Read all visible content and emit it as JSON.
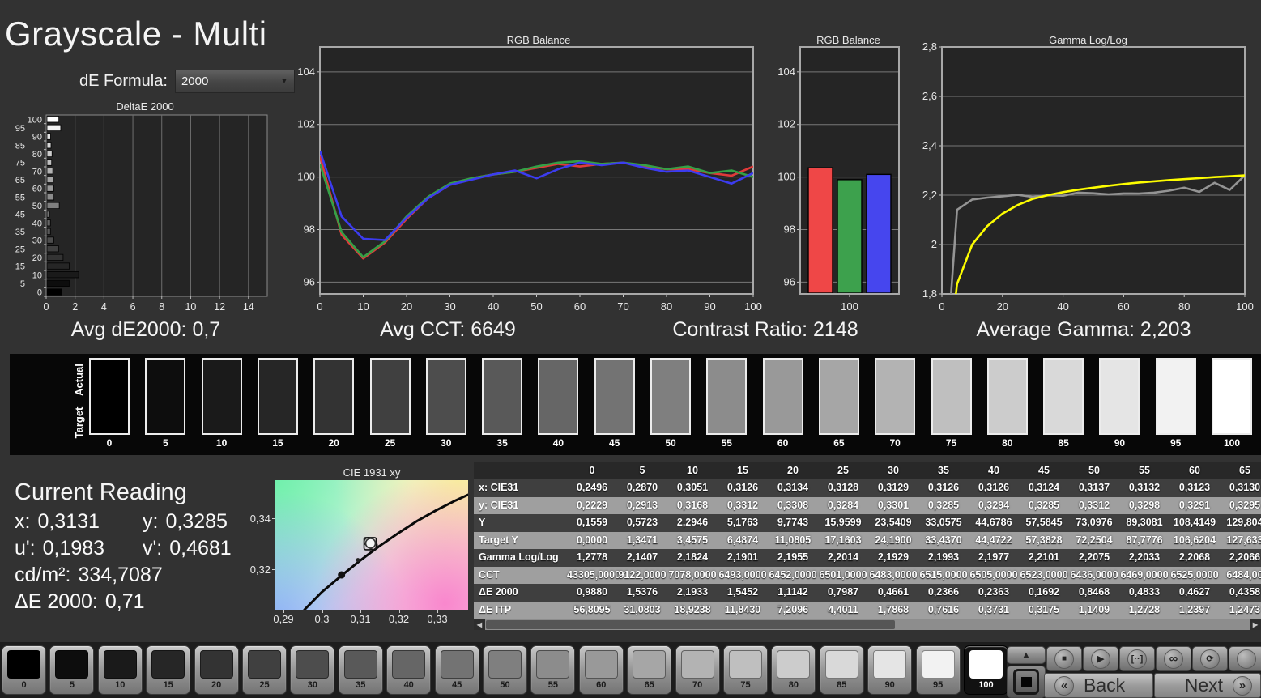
{
  "app": {
    "title": "Grayscale - Multi"
  },
  "controls": {
    "de_formula_label": "dE Formula:",
    "de_formula_value": "2000",
    "dropdown_arrow": "▼"
  },
  "summary": {
    "avg_de": "Avg dE2000: 0,7",
    "avg_cct": "Avg CCT: 6649",
    "contrast": "Contrast Ratio: 2148",
    "avg_gamma": "Average Gamma: 2,203"
  },
  "current_reading": {
    "title": "Current Reading",
    "x_label": "x:",
    "x_value": "0,3131",
    "y_label": "y:",
    "y_value": "0,3285",
    "u_label": "u':",
    "u_value": "0,1983",
    "v_label": "v':",
    "v_value": "0,4681",
    "lum_label": "cd/m²:",
    "lum_value": "334,7087",
    "de_label": "ΔE 2000:",
    "de_value": "0,71"
  },
  "swatch_strip": {
    "actual_label": "Actual",
    "target_label": "Target",
    "levels": [
      0,
      5,
      10,
      15,
      20,
      25,
      30,
      35,
      40,
      45,
      50,
      55,
      60,
      65,
      70,
      75,
      80,
      85,
      90,
      95,
      100
    ]
  },
  "chart_data": [
    {
      "id": "deltae_histogram",
      "type": "bar",
      "orientation": "horizontal",
      "title": "DeltaE 2000",
      "categories": [
        0,
        5,
        10,
        15,
        20,
        25,
        30,
        35,
        40,
        45,
        50,
        55,
        60,
        65,
        70,
        75,
        80,
        85,
        90,
        95,
        100
      ],
      "values": [
        0.988,
        1.5376,
        2.1933,
        1.5452,
        1.1142,
        0.7987,
        0.4661,
        0.2366,
        0.2363,
        0.1692,
        0.8468,
        0.4833,
        0.4627,
        0.4358,
        0.4,
        0.32,
        0.35,
        0.28,
        0.25,
        0.95,
        0.82
      ],
      "xlim": [
        0,
        15.3
      ],
      "xticks": [
        0,
        2,
        4,
        6,
        8,
        10,
        12,
        14
      ],
      "grid": "vertical"
    },
    {
      "id": "rgb_balance_lines",
      "type": "line",
      "title": "RGB Balance",
      "x": [
        0,
        5,
        10,
        15,
        20,
        25,
        30,
        35,
        40,
        45,
        50,
        55,
        60,
        65,
        70,
        75,
        80,
        85,
        90,
        95,
        100
      ],
      "series": [
        {
          "name": "Red",
          "color": "#e03a3a",
          "values": [
            100.8,
            97.8,
            96.9,
            97.5,
            98.4,
            99.2,
            99.7,
            99.95,
            100.1,
            100.2,
            100.35,
            100.5,
            100.4,
            100.5,
            100.55,
            100.4,
            100.3,
            100.3,
            100.15,
            100.05,
            100.4
          ]
        },
        {
          "name": "Green",
          "color": "#34a046",
          "values": [
            100.5,
            97.9,
            96.95,
            97.55,
            98.5,
            99.25,
            99.75,
            99.95,
            100.1,
            100.2,
            100.4,
            100.55,
            100.6,
            100.5,
            100.55,
            100.45,
            100.3,
            100.4,
            100.15,
            100.25,
            100.0
          ]
        },
        {
          "name": "Blue",
          "color": "#3c3cf0",
          "values": [
            101.0,
            98.5,
            97.65,
            97.6,
            98.45,
            99.2,
            99.7,
            99.9,
            100.1,
            100.25,
            99.95,
            100.3,
            100.55,
            100.45,
            100.55,
            100.35,
            100.2,
            100.25,
            100.0,
            99.75,
            100.15
          ]
        }
      ],
      "ylim": [
        95.55,
        104.95
      ],
      "yticks": [
        {
          "v": 96,
          "label": "96"
        },
        {
          "v": 98,
          "label": "98"
        },
        {
          "v": 100,
          "label": "100"
        },
        {
          "v": 102,
          "label": "102"
        },
        {
          "v": 104,
          "label": "104"
        }
      ],
      "xticks": [
        0,
        10,
        20,
        30,
        40,
        50,
        60,
        70,
        80,
        90,
        100
      ],
      "grid": "horizontal"
    },
    {
      "id": "rgb_balance_bars",
      "type": "bar",
      "title": "RGB Balance",
      "categories": [
        "100"
      ],
      "series": [
        {
          "name": "Red",
          "color": "#ef4747",
          "value": 100.35
        },
        {
          "name": "Green",
          "color": "#3da14d",
          "value": 99.9
        },
        {
          "name": "Blue",
          "color": "#4646ee",
          "value": 100.1
        }
      ],
      "ylim": [
        95.55,
        104.95
      ],
      "yticks": [
        {
          "v": 96,
          "label": "96"
        },
        {
          "v": 98,
          "label": "98"
        },
        {
          "v": 100,
          "label": "100"
        },
        {
          "v": 102,
          "label": "102"
        },
        {
          "v": 104,
          "label": "104"
        }
      ]
    },
    {
      "id": "gamma_loglog",
      "type": "line",
      "title": "Gamma Log/Log",
      "x": [
        0,
        5,
        10,
        15,
        20,
        25,
        30,
        35,
        40,
        45,
        50,
        55,
        60,
        65,
        70,
        75,
        80,
        85,
        90,
        95,
        100
      ],
      "series": [
        {
          "name": "Measured",
          "color": "#949494",
          "values": [
            1.2778,
            2.1407,
            2.1824,
            2.1901,
            2.1955,
            2.2014,
            2.1929,
            2.1993,
            2.1977,
            2.2101,
            2.2075,
            2.2033,
            2.2068,
            2.2066,
            2.21,
            2.218,
            2.23,
            2.213,
            2.25,
            2.221,
            2.28
          ]
        },
        {
          "name": "Target",
          "color": "#fdfd00",
          "values": [
            1.3,
            1.84,
            2.0,
            2.075,
            2.125,
            2.16,
            2.185,
            2.2,
            2.212,
            2.222,
            2.23,
            2.238,
            2.245,
            2.251,
            2.256,
            2.261,
            2.265,
            2.269,
            2.273,
            2.2765,
            2.28
          ]
        }
      ],
      "ylim": [
        1.8,
        2.8
      ],
      "yticks": [
        {
          "v": 1.8,
          "label": "1,8"
        },
        {
          "v": 2.0,
          "label": "2"
        },
        {
          "v": 2.2,
          "label": "2,2"
        },
        {
          "v": 2.4,
          "label": "2,4"
        },
        {
          "v": 2.6,
          "label": "2,6"
        },
        {
          "v": 2.8,
          "label": "2,8"
        }
      ],
      "xticks": [
        0,
        20,
        40,
        60,
        80,
        100
      ],
      "grid": "horizontal"
    },
    {
      "id": "cie_1931_xy",
      "type": "scatter",
      "title": "CIE 1931 xy",
      "xticks": [
        "0,29",
        "0,3",
        "0,31",
        "0,32",
        "0,33"
      ],
      "yticks": [
        "0,34",
        "0,32"
      ],
      "locus": [
        [
          0.2955,
          0.3048
        ],
        [
          0.3,
          0.3115
        ],
        [
          0.305,
          0.3176
        ],
        [
          0.31,
          0.3235
        ],
        [
          0.315,
          0.329
        ],
        [
          0.32,
          0.334
        ],
        [
          0.325,
          0.3387
        ],
        [
          0.33,
          0.3428
        ],
        [
          0.335,
          0.3465
        ],
        [
          0.3383,
          0.3487
        ]
      ],
      "points": [
        {
          "x": 0.3052,
          "y": 0.3181,
          "style": "dot"
        },
        {
          "x": 0.3095,
          "y": 0.3238,
          "style": "dot-small"
        },
        {
          "x": 0.3135,
          "y": 0.3293,
          "style": "ring"
        },
        {
          "x": 0.3122,
          "y": 0.3308,
          "style": "ring"
        },
        {
          "x": 0.3128,
          "y": 0.3302,
          "style": "current"
        }
      ]
    }
  ],
  "table": {
    "columns": [
      "0",
      "5",
      "10",
      "15",
      "20",
      "25",
      "30",
      "35",
      "40",
      "45",
      "50",
      "55",
      "60",
      "65"
    ],
    "rows": [
      {
        "label": "x: CIE31",
        "values": [
          "0,2496",
          "0,2870",
          "0,3051",
          "0,3126",
          "0,3134",
          "0,3128",
          "0,3129",
          "0,3126",
          "0,3126",
          "0,3124",
          "0,3137",
          "0,3132",
          "0,3123",
          "0,3130"
        ]
      },
      {
        "label": "y: CIE31",
        "values": [
          "0,2229",
          "0,2913",
          "0,3168",
          "0,3312",
          "0,3308",
          "0,3284",
          "0,3301",
          "0,3285",
          "0,3294",
          "0,3285",
          "0,3312",
          "0,3298",
          "0,3291",
          "0,3295"
        ]
      },
      {
        "label": "Y",
        "values": [
          "0,1559",
          "0,5723",
          "2,2946",
          "5,1763",
          "9,7743",
          "15,9599",
          "23,5409",
          "33,0575",
          "44,6786",
          "57,5845",
          "73,0976",
          "89,3081",
          "108,4149",
          "129,804"
        ]
      },
      {
        "label": "Target Y",
        "values": [
          "0,0000",
          "1,3471",
          "3,4575",
          "6,4874",
          "11,0805",
          "17,1603",
          "24,1900",
          "33,4370",
          "44,4722",
          "57,3828",
          "72,2504",
          "87,7776",
          "106,6204",
          "127,633"
        ]
      },
      {
        "label": "Gamma Log/Log",
        "values": [
          "1,2778",
          "2,1407",
          "2,1824",
          "2,1901",
          "2,1955",
          "2,2014",
          "2,1929",
          "2,1993",
          "2,1977",
          "2,2101",
          "2,2075",
          "2,2033",
          "2,2068",
          "2,2066"
        ]
      },
      {
        "label": "CCT",
        "values": [
          "43305,0000",
          "9122,0000",
          "7078,0000",
          "6493,0000",
          "6452,0000",
          "6501,0000",
          "6483,0000",
          "6515,0000",
          "6505,0000",
          "6523,0000",
          "6436,0000",
          "6469,0000",
          "6525,0000",
          "6484,00"
        ]
      },
      {
        "label": "ΔE 2000",
        "values": [
          "0,9880",
          "1,5376",
          "2,1933",
          "1,5452",
          "1,1142",
          "0,7987",
          "0,4661",
          "0,2366",
          "0,2363",
          "0,1692",
          "0,8468",
          "0,4833",
          "0,4627",
          "0,4358"
        ]
      },
      {
        "label": "ΔE ITP",
        "values": [
          "56,8095",
          "31,0803",
          "18,9238",
          "11,8430",
          "7,2096",
          "4,4011",
          "1,7868",
          "0,7616",
          "0,3731",
          "0,3175",
          "1,1409",
          "1,2728",
          "1,2397",
          "1,2473"
        ]
      }
    ],
    "scroll_left": "◀",
    "scroll_right": "▶"
  },
  "bottom_bar": {
    "patch_levels": [
      0,
      5,
      10,
      15,
      20,
      25,
      30,
      35,
      40,
      45,
      50,
      55,
      60,
      65,
      70,
      75,
      80,
      85,
      90,
      95,
      100
    ],
    "selected_level": 100,
    "collapse_glyph": "▲",
    "transport": [
      {
        "name": "stop",
        "glyph": "■"
      },
      {
        "name": "play",
        "glyph": "▶"
      },
      {
        "name": "step",
        "glyph": "[··]"
      },
      {
        "name": "loop",
        "glyph": "∞"
      },
      {
        "name": "refresh",
        "glyph": "⟳"
      },
      {
        "name": "record",
        "glyph": ""
      }
    ],
    "back_chevron": "«",
    "back_label": "Back",
    "next_label": "Next",
    "next_chevron": "»"
  }
}
